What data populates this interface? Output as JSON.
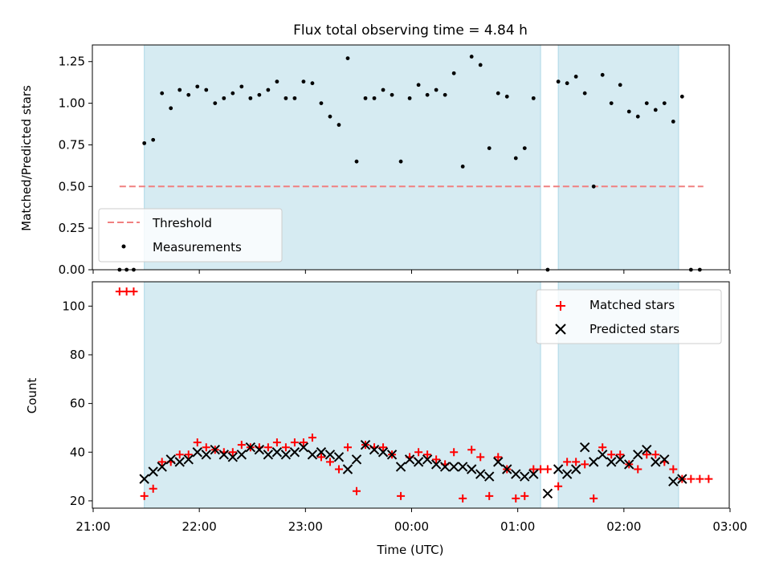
{
  "title": "Flux total observing time = 4.84 h",
  "xlabel": "Time (UTC)",
  "chart_data": [
    {
      "type": "scatter",
      "panel": "top",
      "title": "Flux total observing time = 4.84 h",
      "ylabel": "Matched/Predicted stars",
      "xlim": [
        "21:00",
        "03:00"
      ],
      "ylim": [
        0,
        1.35
      ],
      "yticks": [
        "0.00",
        "0.25",
        "0.50",
        "0.75",
        "1.00",
        "1.25"
      ],
      "grid": false,
      "legend_position": "lower-left",
      "observing_windows": [
        [
          "21:28",
          "01:12"
        ],
        [
          "01:22",
          "02:30"
        ]
      ],
      "threshold": {
        "name": "Threshold",
        "value": 0.5,
        "x_range": [
          "21:14",
          "02:44"
        ],
        "color": "#f08080"
      },
      "series": [
        {
          "name": "Measurements",
          "color": "#000000",
          "x": [
            "21:14",
            "21:18",
            "21:22",
            "21:28",
            "21:33",
            "21:38",
            "21:43",
            "21:48",
            "21:53",
            "21:58",
            "22:03",
            "22:08",
            "22:13",
            "22:18",
            "22:23",
            "22:28",
            "22:33",
            "22:38",
            "22:43",
            "22:48",
            "22:53",
            "22:58",
            "23:03",
            "23:08",
            "23:13",
            "23:18",
            "23:23",
            "23:28",
            "23:33",
            "23:38",
            "23:43",
            "23:48",
            "23:53",
            "23:58",
            "00:03",
            "00:08",
            "00:13",
            "00:18",
            "00:23",
            "00:28",
            "00:33",
            "00:38",
            "00:43",
            "00:48",
            "00:53",
            "00:58",
            "01:03",
            "01:08",
            "01:16",
            "01:22",
            "01:27",
            "01:32",
            "01:37",
            "01:42",
            "01:47",
            "01:52",
            "01:57",
            "02:02",
            "02:07",
            "02:12",
            "02:17",
            "02:22",
            "02:27",
            "02:32",
            "02:37",
            "02:42"
          ],
          "y": [
            0,
            0,
            0,
            0.76,
            0.78,
            1.06,
            0.97,
            1.08,
            1.05,
            1.1,
            1.08,
            1.0,
            1.03,
            1.06,
            1.1,
            1.03,
            1.05,
            1.08,
            1.13,
            1.03,
            1.03,
            1.13,
            1.12,
            1.0,
            0.92,
            0.87,
            1.27,
            0.65,
            1.03,
            1.03,
            1.08,
            1.05,
            0.65,
            1.03,
            1.11,
            1.05,
            1.08,
            1.05,
            1.18,
            0.62,
            1.28,
            1.23,
            0.73,
            1.06,
            1.04,
            0.67,
            0.73,
            1.03,
            0,
            1.13,
            1.12,
            1.16,
            1.06,
            0.5,
            1.17,
            1.0,
            1.11,
            0.95,
            0.92,
            1.0,
            0.96,
            1.0,
            0.89,
            1.04,
            0,
            0
          ]
        }
      ]
    },
    {
      "type": "scatter",
      "panel": "bottom",
      "xlabel": "Time (UTC)",
      "ylabel": "Count",
      "xlim": [
        "21:00",
        "03:00"
      ],
      "xticks": [
        "21:00",
        "22:00",
        "23:00",
        "00:00",
        "01:00",
        "02:00",
        "03:00"
      ],
      "ylim": [
        17,
        110
      ],
      "yticks": [
        "20",
        "40",
        "60",
        "80",
        "100"
      ],
      "grid": false,
      "legend_position": "top-right",
      "observing_windows": [
        [
          "21:28",
          "01:12"
        ],
        [
          "01:22",
          "02:30"
        ]
      ],
      "series": [
        {
          "name": "Matched stars",
          "marker": "plus",
          "color": "#ff0000",
          "x": [
            "21:14",
            "21:18",
            "21:22",
            "21:28",
            "21:33",
            "21:38",
            "21:43",
            "21:48",
            "21:53",
            "21:58",
            "22:03",
            "22:08",
            "22:13",
            "22:18",
            "22:23",
            "22:28",
            "22:33",
            "22:38",
            "22:43",
            "22:48",
            "22:53",
            "22:58",
            "23:03",
            "23:08",
            "23:13",
            "23:18",
            "23:23",
            "23:28",
            "23:33",
            "23:38",
            "23:43",
            "23:48",
            "23:53",
            "23:58",
            "00:03",
            "00:08",
            "00:13",
            "00:18",
            "00:23",
            "00:28",
            "00:33",
            "00:38",
            "00:43",
            "00:48",
            "00:53",
            "00:58",
            "01:03",
            "01:08",
            "01:12",
            "01:16",
            "01:22",
            "01:27",
            "01:32",
            "01:37",
            "01:42",
            "01:47",
            "01:52",
            "01:57",
            "02:02",
            "02:07",
            "02:12",
            "02:17",
            "02:22",
            "02:27",
            "02:32",
            "02:37",
            "02:42",
            "02:47"
          ],
          "y": [
            106,
            106,
            106,
            22,
            25,
            36,
            36,
            39,
            39,
            44,
            42,
            41,
            40,
            40,
            43,
            42,
            42,
            42,
            44,
            42,
            44,
            44,
            46,
            38,
            36,
            33,
            42,
            24,
            43,
            42,
            42,
            39,
            22,
            38,
            40,
            39,
            37,
            35,
            40,
            21,
            41,
            38,
            22,
            38,
            33,
            21,
            22,
            33,
            33,
            33,
            26,
            36,
            36,
            35,
            21,
            42,
            39,
            39,
            35,
            33,
            39,
            39,
            36,
            33,
            29,
            29,
            29,
            29
          ]
        },
        {
          "name": "Predicted stars",
          "marker": "x",
          "color": "#000000",
          "x": [
            "21:28",
            "21:33",
            "21:38",
            "21:43",
            "21:48",
            "21:53",
            "21:58",
            "22:03",
            "22:08",
            "22:13",
            "22:18",
            "22:23",
            "22:28",
            "22:33",
            "22:38",
            "22:43",
            "22:48",
            "22:53",
            "22:58",
            "23:03",
            "23:08",
            "23:13",
            "23:18",
            "23:23",
            "23:28",
            "23:33",
            "23:38",
            "23:43",
            "23:48",
            "23:53",
            "23:58",
            "00:03",
            "00:08",
            "00:13",
            "00:18",
            "00:23",
            "00:28",
            "00:33",
            "00:38",
            "00:43",
            "00:48",
            "00:53",
            "00:58",
            "01:03",
            "01:08",
            "01:16",
            "01:22",
            "01:27",
            "01:32",
            "01:37",
            "01:42",
            "01:47",
            "01:52",
            "01:57",
            "02:02",
            "02:07",
            "02:12",
            "02:17",
            "02:22",
            "02:27",
            "02:32"
          ],
          "y": [
            29,
            32,
            34,
            37,
            36,
            37,
            40,
            39,
            41,
            39,
            38,
            39,
            42,
            41,
            39,
            40,
            39,
            40,
            42,
            39,
            40,
            39,
            38,
            33,
            37,
            43,
            41,
            40,
            39,
            34,
            37,
            36,
            37,
            35,
            34,
            34,
            34,
            33,
            31,
            30,
            36,
            33,
            31,
            30,
            31,
            23,
            33,
            31,
            33,
            42,
            36,
            39,
            36,
            37,
            35,
            39,
            41,
            36,
            37,
            28,
            29
          ]
        }
      ]
    }
  ]
}
